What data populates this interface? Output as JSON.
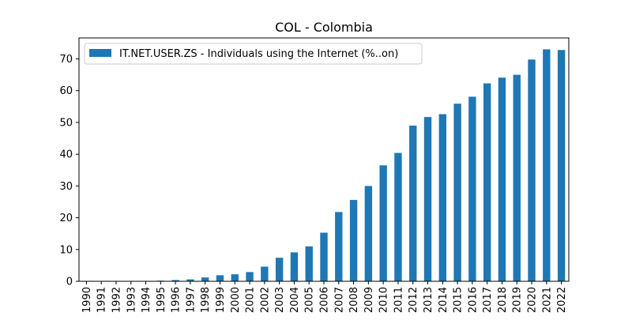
{
  "chart_data": {
    "type": "bar",
    "title": "COL - Colombia",
    "xlabel": "",
    "ylabel": "",
    "ylim": [
      0,
      76.6
    ],
    "yticks": [
      0,
      10,
      20,
      30,
      40,
      50,
      60,
      70
    ],
    "categories": [
      "1990",
      "1991",
      "1992",
      "1993",
      "1994",
      "1995",
      "1996",
      "1997",
      "1998",
      "1999",
      "2000",
      "2001",
      "2002",
      "2003",
      "2004",
      "2005",
      "2006",
      "2007",
      "2008",
      "2009",
      "2010",
      "2011",
      "2012",
      "2013",
      "2014",
      "2015",
      "2016",
      "2017",
      "2018",
      "2019",
      "2020",
      "2021",
      "2022"
    ],
    "series": [
      {
        "name": "IT.NET.USER.ZS - Individuals using the Internet (%..on)",
        "color": "#1f77b4",
        "values": [
          0,
          0,
          0,
          0,
          0.05,
          0.2,
          0.4,
          0.6,
          1.2,
          1.9,
          2.2,
          2.9,
          4.6,
          7.4,
          9.1,
          11.0,
          15.3,
          21.8,
          25.6,
          30.0,
          36.5,
          40.4,
          49.0,
          51.7,
          52.6,
          55.9,
          58.1,
          62.3,
          64.1,
          65.0,
          69.8,
          73.0,
          72.8
        ]
      }
    ],
    "legend": "top-left",
    "grid": false
  }
}
